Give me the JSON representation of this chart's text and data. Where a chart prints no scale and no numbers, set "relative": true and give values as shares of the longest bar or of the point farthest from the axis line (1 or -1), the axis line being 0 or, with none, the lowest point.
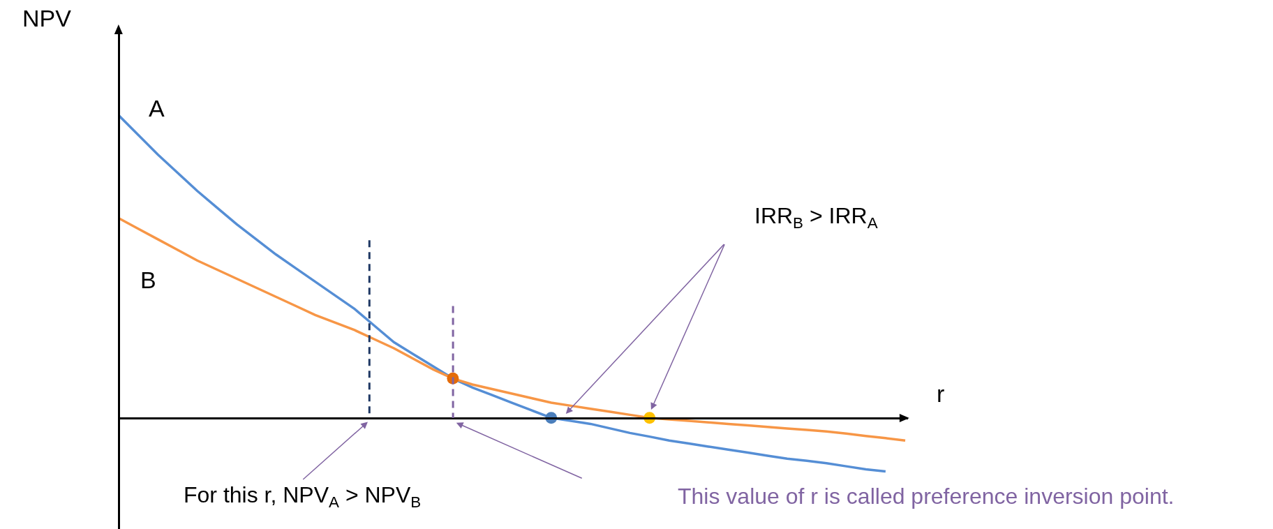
{
  "chart_data": {
    "type": "line",
    "relative": true,
    "xlabel": "r",
    "ylabel": "NPV",
    "categories": [
      null,
      null,
      null,
      null,
      null,
      null,
      null,
      null,
      null,
      null,
      null,
      null,
      null,
      null,
      null,
      null,
      null,
      null,
      null,
      null,
      null,
      null,
      null,
      null,
      null,
      null,
      null,
      null,
      null,
      null,
      null,
      null,
      null,
      null,
      null,
      null,
      null,
      null,
      null,
      null,
      null
    ],
    "series": [
      {
        "name": "A",
        "color": "#558ed5",
        "values": [
          1.0,
          0.935,
          0.87,
          0.81,
          0.75,
          0.695,
          0.64,
          0.59,
          0.54,
          0.495,
          0.45,
          0.405,
          0.36,
          0.305,
          0.25,
          0.21,
          0.17,
          0.13,
          0.1,
          0.075,
          0.05,
          0.025,
          0,
          -0.01,
          -0.02,
          -0.035,
          -0.05,
          -0.062,
          -0.075,
          -0.085,
          -0.095,
          -0.105,
          -0.115,
          -0.125,
          -0.135,
          -0.142,
          -0.15,
          -0.16,
          -0.17,
          -0.177,
          null
        ]
      },
      {
        "name": "B",
        "color": "#f79646",
        "values": [
          0.66,
          0.625,
          0.59,
          0.555,
          0.52,
          0.49,
          0.46,
          0.43,
          0.4,
          0.37,
          0.34,
          0.315,
          0.29,
          0.26,
          0.23,
          0.195,
          0.16,
          0.13,
          0.11,
          0.095,
          0.08,
          0.065,
          0.05,
          0.04,
          0.03,
          0.02,
          0.01,
          0,
          -0.005,
          -0.01,
          -0.015,
          -0.02,
          -0.025,
          -0.03,
          -0.035,
          -0.04,
          -0.045,
          -0.052,
          -0.06,
          -0.067,
          -0.075
        ]
      },
      {
        "type": "line",
        "marker": "circle",
        "color": "#e46c0a",
        "values": [
          null,
          null,
          null,
          null,
          null,
          null,
          null,
          null,
          null,
          null,
          null,
          null,
          null,
          null,
          null,
          null,
          null,
          0.13,
          null,
          null,
          null,
          null,
          null,
          null,
          null,
          null,
          null,
          null,
          null,
          null,
          null,
          null,
          null,
          null,
          null,
          null,
          null,
          null,
          null,
          null,
          null
        ]
      },
      {
        "type": "line",
        "marker": "circle",
        "color": "#4a7ebb",
        "values": [
          null,
          null,
          null,
          null,
          null,
          null,
          null,
          null,
          null,
          null,
          null,
          null,
          null,
          null,
          null,
          null,
          null,
          null,
          null,
          null,
          null,
          null,
          0,
          null,
          null,
          null,
          null,
          null,
          null,
          null,
          null,
          null,
          null,
          null,
          null,
          null,
          null,
          null,
          null,
          null,
          null
        ]
      },
      {
        "type": "line",
        "marker": "circle",
        "color": "#ffc000",
        "values": [
          null,
          null,
          null,
          null,
          null,
          null,
          null,
          null,
          null,
          null,
          null,
          null,
          null,
          null,
          null,
          null,
          null,
          null,
          null,
          null,
          null,
          null,
          null,
          null,
          null,
          null,
          null,
          0,
          null,
          null,
          null,
          null,
          null,
          null,
          null,
          null,
          null,
          null,
          null,
          null,
          null
        ]
      }
    ],
    "annotations": [
      "IRR$_{B}$ > IRR$_{A}$",
      "For this r, NPV$_{A}$ > NPV$_{B}$",
      "This value of r is called preference inversion point."
    ]
  }
}
